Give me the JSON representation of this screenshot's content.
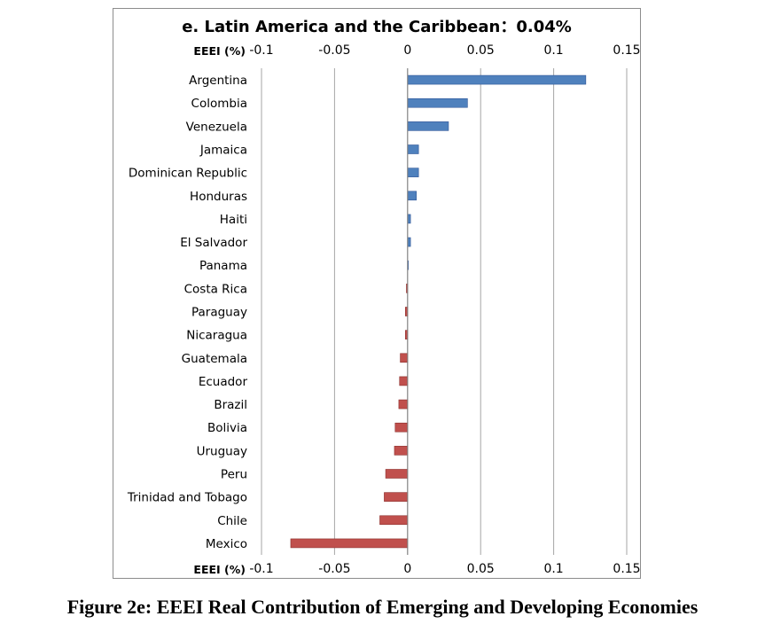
{
  "caption": "Figure 2e: EEEI Real Contribution of Emerging and Developing Economies",
  "chart_data": {
    "type": "bar",
    "orientation": "horizontal",
    "title": "e. Latin America and the Caribbean：0.04%",
    "xlabel": "EEEI (%)",
    "xlim": [
      -0.1,
      0.15
    ],
    "xticks": [
      -0.1,
      -0.05,
      0,
      0.05,
      0.1,
      0.15
    ],
    "xtick_labels": [
      "-0.1",
      "-0.05",
      "0",
      "0.05",
      "0.1",
      "0.15"
    ],
    "x_axis_position": "top and bottom",
    "grid": "vertical",
    "legend": "none",
    "colors": {
      "positive": "#4f81bd",
      "negative": "#c0504d",
      "positive_edge": "#2f5597",
      "negative_edge": "#8b2e2b",
      "grid": "#a6a6a6"
    },
    "categories": [
      "Argentina",
      "Colombia",
      "Venezuela",
      "Jamaica",
      "Dominican Republic",
      "Honduras",
      "Haiti",
      "El Salvador",
      "Panama",
      "Costa Rica",
      "Paraguay",
      "Nicaragua",
      "Guatemala",
      "Ecuador",
      "Brazil",
      "Bolivia",
      "Uruguay",
      "Peru",
      "Trinidad and Tobago",
      "Chile",
      "Mexico"
    ],
    "values": [
      0.122,
      0.041,
      0.028,
      0.0075,
      0.0075,
      0.006,
      0.002,
      0.002,
      0.0005,
      -0.0008,
      -0.0015,
      -0.0015,
      -0.005,
      -0.0055,
      -0.006,
      -0.0085,
      -0.009,
      -0.015,
      -0.016,
      -0.019,
      -0.08
    ]
  }
}
